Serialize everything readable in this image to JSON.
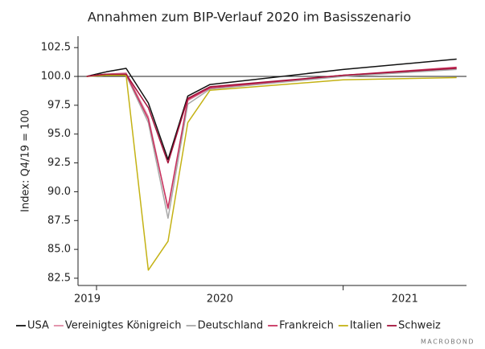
{
  "chart_data": {
    "type": "line",
    "title": "Annahmen zum BIP-Verlauf 2020 im Basisszenario",
    "y_label": "Index: Q4/19 = 100",
    "source": "MACROBOND",
    "x": [
      2019.96,
      2020.04,
      2020.12,
      2020.21,
      2020.29,
      2020.37,
      2020.46,
      2021.0,
      2021.46
    ],
    "xlim": [
      2019.925,
      2021.5
    ],
    "xticks": [
      2020,
      2021
    ],
    "x_labels": [
      2019,
      2020,
      2021
    ],
    "ylim": [
      81.87,
      103.49
    ],
    "yticks": [
      82.5,
      {
        "value": 85,
        "label": "85.0"
      },
      87.5,
      {
        "value": 90,
        "label": "90.0"
      },
      92.5,
      {
        "value": 95,
        "label": "95.0"
      },
      97.5,
      {
        "value": 100,
        "label": "100.0"
      },
      102.5
    ],
    "reference_line": 100,
    "legend": "bottom",
    "series": [
      {
        "name": "USA",
        "color": "#111111",
        "values": [
          100,
          100.4,
          100.7,
          97.7,
          92.8,
          98.3,
          99.3,
          100.6,
          101.5
        ]
      },
      {
        "name": "Vereinigtes Königreich",
        "color": "#e08aa4",
        "values": [
          100,
          100.2,
          100.3,
          96.5,
          88.5,
          97.9,
          99.0,
          100.1,
          100.7
        ]
      },
      {
        "name": "Deutschland",
        "color": "#a8a8a8",
        "values": [
          100,
          100.1,
          100.1,
          96.0,
          87.7,
          97.6,
          98.9,
          100.0,
          100.6
        ]
      },
      {
        "name": "Frankreich",
        "color": "#c8325e",
        "values": [
          100,
          100.2,
          100.2,
          96.3,
          88.6,
          98.0,
          99.0,
          100.1,
          100.8
        ]
      },
      {
        "name": "Italien",
        "color": "#c4b214",
        "values": [
          100,
          100.1,
          100.1,
          83.2,
          85.7,
          96.0,
          98.8,
          99.7,
          99.9
        ]
      },
      {
        "name": "Schweiz",
        "color": "#a3123a",
        "values": [
          100,
          100.2,
          100.2,
          97.3,
          92.5,
          98.1,
          99.1,
          100.1,
          100.7
        ]
      }
    ]
  }
}
